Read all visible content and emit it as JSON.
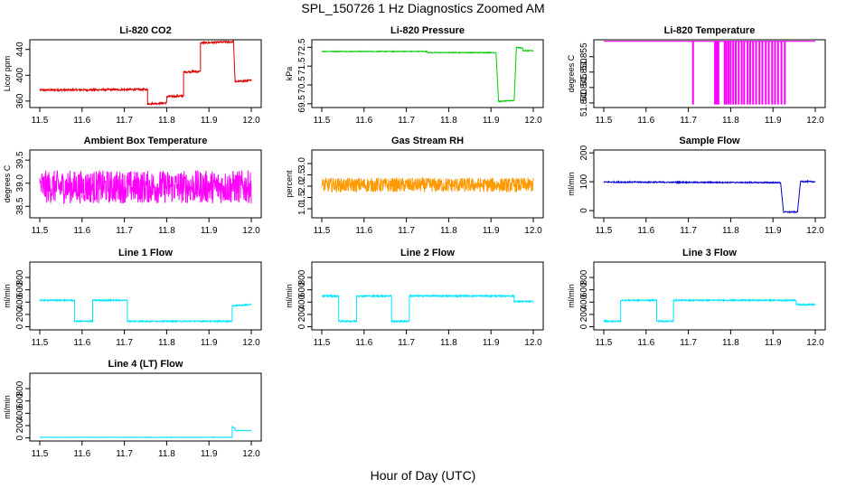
{
  "figure": {
    "title": "SPL_150726  1 Hz Diagnostics Zoomed AM",
    "xlabel": "Hour of Day (UTC)"
  },
  "chart_data": [
    {
      "type": "line",
      "title": "Li-820 CO2",
      "ylabel": "Licor ppm",
      "color": "#dd0000",
      "xlim": [
        11.5,
        12.0
      ],
      "xticks": [
        "11.5",
        "11.6",
        "11.7",
        "11.8",
        "11.9",
        "12.0"
      ],
      "ylim": [
        350,
        455
      ],
      "yticks": [
        "360",
        "400",
        "440"
      ],
      "segments": [
        {
          "x": [
            11.5,
            11.755
          ],
          "y": [
            377,
            378
          ]
        },
        {
          "x": [
            11.755,
            11.8
          ],
          "y": [
            356,
            357
          ]
        },
        {
          "x": [
            11.8,
            11.84
          ],
          "y": [
            367,
            368
          ]
        },
        {
          "x": [
            11.84,
            11.88
          ],
          "y": [
            405,
            406
          ]
        },
        {
          "x": [
            11.88,
            11.958
          ],
          "y": [
            450,
            452
          ]
        },
        {
          "x": [
            11.962,
            12.0
          ],
          "y": [
            390,
            392
          ]
        }
      ],
      "noise": 1.5
    },
    {
      "type": "line",
      "title": "Li-820 Pressure",
      "ylabel": "kPa",
      "color": "#00cc00",
      "xlim": [
        11.5,
        12.0
      ],
      "xticks": [
        "11.5",
        "11.6",
        "11.7",
        "11.8",
        "11.9",
        "12.0"
      ],
      "ylim": [
        69.3,
        72.9
      ],
      "yticks": [
        "69.5",
        "70.5",
        "71.5",
        "72.5"
      ],
      "segments": [
        {
          "x": [
            11.5,
            11.75
          ],
          "y": [
            72.28,
            72.28
          ]
        },
        {
          "x": [
            11.75,
            11.912
          ],
          "y": [
            72.22,
            72.22
          ]
        },
        {
          "x": [
            11.918,
            11.955
          ],
          "y": [
            69.62,
            69.68
          ]
        },
        {
          "x": [
            11.96,
            11.975
          ],
          "y": [
            72.5,
            72.45
          ]
        },
        {
          "x": [
            11.975,
            12.0
          ],
          "y": [
            72.32,
            72.32
          ]
        }
      ],
      "noise": 0.02
    },
    {
      "type": "line",
      "title": "Li-820 Temperature",
      "ylabel": "degrees C",
      "color": "#ff00ff",
      "xlim": [
        11.5,
        12.0
      ],
      "xticks": [
        "11.5",
        "11.6",
        "11.7",
        "11.8",
        "11.9",
        "12.0"
      ],
      "ylim": [
        51.8385,
        51.8605
      ],
      "yticks": [
        "51.840",
        "51.845",
        "51.850",
        "51.855"
      ],
      "baseline": 51.86,
      "dropouts_x": [
        11.711,
        11.763,
        11.767,
        11.771,
        11.786,
        11.79,
        11.795,
        11.8,
        11.806,
        11.812,
        11.819,
        11.826,
        11.832,
        11.84,
        11.846,
        11.853,
        11.86,
        11.868,
        11.875,
        11.883,
        11.89,
        11.898,
        11.905,
        11.912,
        11.92,
        11.928
      ],
      "dropout_low": 51.8395
    },
    {
      "type": "line",
      "title": "Ambient Box Temperature",
      "ylabel": "degrees C",
      "color": "#ff00ff",
      "xlim": [
        11.5,
        12.0
      ],
      "xticks": [
        "11.5",
        "11.6",
        "11.7",
        "11.8",
        "11.9",
        "12.0"
      ],
      "ylim": [
        38.25,
        39.72
      ],
      "yticks": [
        "38.5",
        "39.0",
        "39.5"
      ],
      "segments": [
        {
          "x": [
            11.5,
            12.0
          ],
          "y": [
            38.92,
            38.92
          ]
        }
      ],
      "noise": 0.36
    },
    {
      "type": "line",
      "title": "Gas Stream RH",
      "ylabel": "percent",
      "color": "#ff9900",
      "xlim": [
        11.5,
        12.0
      ],
      "xticks": [
        "11.5",
        "11.6",
        "11.7",
        "11.8",
        "11.9",
        "12.0"
      ],
      "ylim": [
        0.6,
        3.6
      ],
      "yticks": [
        "1.0",
        "1.5",
        "2.0",
        "2.5",
        "3.0"
      ],
      "segments": [
        {
          "x": [
            11.5,
            12.0
          ],
          "y": [
            2.05,
            2.05
          ]
        }
      ],
      "noise": 0.32
    },
    {
      "type": "line",
      "title": "Sample Flow",
      "ylabel": "ml/min",
      "color": "#0000cc",
      "xlim": [
        11.5,
        12.0
      ],
      "xticks": [
        "11.5",
        "11.6",
        "11.7",
        "11.8",
        "11.9",
        "12.0"
      ],
      "ylim": [
        -25,
        210
      ],
      "yticks": [
        "0",
        "100",
        "200"
      ],
      "segments": [
        {
          "x": [
            11.5,
            11.918
          ],
          "y": [
            99,
            97
          ]
        },
        {
          "x": [
            11.925,
            11.958
          ],
          "y": [
            -5,
            -5
          ]
        },
        {
          "x": [
            11.965,
            12.0
          ],
          "y": [
            101,
            100
          ]
        }
      ],
      "noise": 2
    },
    {
      "type": "line",
      "title": "Line 1 Flow",
      "ylabel": "ml/min",
      "color": "#00e5ff",
      "xlim": [
        11.5,
        12.0
      ],
      "xticks": [
        "11.5",
        "11.6",
        "11.7",
        "11.8",
        "11.9",
        "12.0"
      ],
      "ylim": [
        -50,
        1050
      ],
      "yticks": [
        "0",
        "200",
        "400",
        "600",
        "800"
      ],
      "segments": [
        {
          "x": [
            11.5,
            11.582
          ],
          "y": [
            430,
            430
          ]
        },
        {
          "x": [
            11.582,
            11.625
          ],
          "y": [
            90,
            90
          ]
        },
        {
          "x": [
            11.625,
            11.707
          ],
          "y": [
            430,
            430
          ]
        },
        {
          "x": [
            11.707,
            11.955
          ],
          "y": [
            90,
            90
          ]
        },
        {
          "x": [
            11.955,
            12.0
          ],
          "y": [
            340,
            360
          ]
        }
      ],
      "noise": 10
    },
    {
      "type": "line",
      "title": "Line 2 Flow",
      "ylabel": "ml/min",
      "color": "#00e5ff",
      "xlim": [
        11.5,
        12.0
      ],
      "xticks": [
        "11.5",
        "11.6",
        "11.7",
        "11.8",
        "11.9",
        "12.0"
      ],
      "ylim": [
        -50,
        1050
      ],
      "yticks": [
        "0",
        "200",
        "400",
        "600",
        "800"
      ],
      "segments": [
        {
          "x": [
            11.5,
            11.54
          ],
          "y": [
            500,
            500
          ]
        },
        {
          "x": [
            11.54,
            11.582
          ],
          "y": [
            90,
            90
          ]
        },
        {
          "x": [
            11.582,
            11.665
          ],
          "y": [
            500,
            500
          ]
        },
        {
          "x": [
            11.665,
            11.707
          ],
          "y": [
            90,
            90
          ]
        },
        {
          "x": [
            11.707,
            11.955
          ],
          "y": [
            500,
            500
          ]
        },
        {
          "x": [
            11.955,
            12.0
          ],
          "y": [
            410,
            410
          ]
        }
      ],
      "noise": 12
    },
    {
      "type": "line",
      "title": "Line 3 Flow",
      "ylabel": "ml/min",
      "color": "#00e5ff",
      "xlim": [
        11.5,
        12.0
      ],
      "xticks": [
        "11.5",
        "11.6",
        "11.7",
        "11.8",
        "11.9",
        "12.0"
      ],
      "ylim": [
        -50,
        1050
      ],
      "yticks": [
        "0",
        "200",
        "400",
        "600",
        "800"
      ],
      "segments": [
        {
          "x": [
            11.5,
            11.54
          ],
          "y": [
            90,
            90
          ]
        },
        {
          "x": [
            11.54,
            11.625
          ],
          "y": [
            430,
            430
          ]
        },
        {
          "x": [
            11.625,
            11.665
          ],
          "y": [
            90,
            90
          ]
        },
        {
          "x": [
            11.665,
            11.955
          ],
          "y": [
            430,
            430
          ]
        },
        {
          "x": [
            11.955,
            12.0
          ],
          "y": [
            360,
            360
          ]
        }
      ],
      "noise": 10
    },
    {
      "type": "line",
      "title": "Line 4 (LT) Flow",
      "ylabel": "ml/min",
      "color": "#00e5ff",
      "xlim": [
        11.5,
        12.0
      ],
      "xticks": [
        "11.5",
        "11.6",
        "11.7",
        "11.8",
        "11.9",
        "12.0"
      ],
      "ylim": [
        -50,
        1050
      ],
      "yticks": [
        "0",
        "200",
        "400",
        "600",
        "800"
      ],
      "segments": [
        {
          "x": [
            11.5,
            11.955
          ],
          "y": [
            10,
            10
          ]
        },
        {
          "x": [
            11.955,
            11.962
          ],
          "y": [
            180,
            150
          ]
        },
        {
          "x": [
            11.962,
            12.0
          ],
          "y": [
            120,
            120
          ]
        }
      ],
      "noise": 4
    }
  ]
}
